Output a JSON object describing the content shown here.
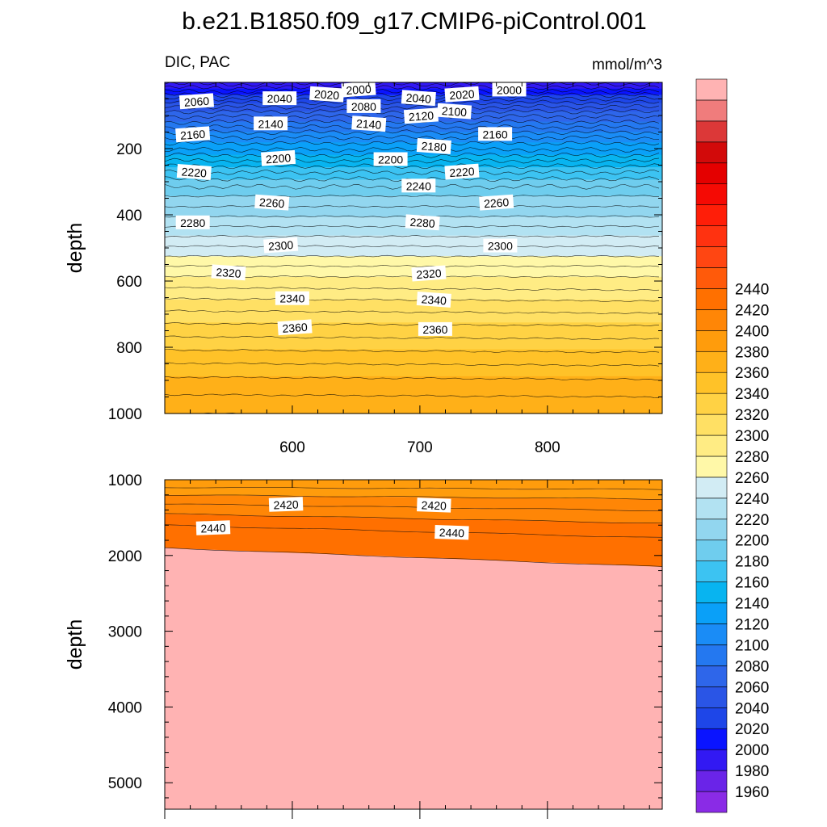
{
  "title": "b.e21.B1850.f09_g17.CMIP6-piControl.001",
  "panel_left_label": "DIC, PAC",
  "panel_right_label": "mmol/m^3",
  "colorbar": {
    "levels": [
      1960,
      1980,
      2000,
      2020,
      2040,
      2060,
      2080,
      2100,
      2120,
      2140,
      2160,
      2180,
      2200,
      2220,
      2240,
      2260,
      2280,
      2300,
      2320,
      2340,
      2360,
      2380,
      2400,
      2420,
      2440
    ],
    "colors": [
      "#8a2be6",
      "#6a24e8",
      "#3219f3",
      "#0a14ff",
      "#1e46e8",
      "#2a55e6",
      "#2e66ea",
      "#2478f0",
      "#1a8cf6",
      "#0aa0f8",
      "#08b4f0",
      "#3cc3f2",
      "#6fcdee",
      "#92d6ef",
      "#b2e2f2",
      "#d2ecf4",
      "#fff8a8",
      "#ffec84",
      "#ffe064",
      "#ffd244",
      "#ffc228",
      "#ffb018",
      "#ff9c0c",
      "#ff8606",
      "#ff7000",
      "#ff5a0a",
      "#ff4612",
      "#ff3210",
      "#ff1e08",
      "#f50a04",
      "#e40000",
      "#d20a0a",
      "#dc3838",
      "#f07c7c",
      "#ffb3b3"
    ]
  },
  "chart_data": [
    {
      "type": "contour",
      "panel": "upper",
      "xlim": [
        500,
        890
      ],
      "ylim": [
        1000,
        0
      ],
      "x_ticks": [
        "600",
        "700",
        "800"
      ],
      "y_ticks": [
        "200",
        "400",
        "600",
        "800",
        "1000"
      ],
      "ylabel": "depth",
      "profile_depths": [
        0,
        10,
        20,
        30,
        40,
        55,
        70,
        85,
        100,
        120,
        140,
        160,
        180,
        200,
        220,
        240,
        260,
        280,
        300,
        320,
        340,
        360,
        390,
        420,
        450,
        480,
        510,
        540,
        570,
        600,
        630,
        660,
        690,
        720,
        760,
        800,
        840,
        880,
        920,
        960,
        1000
      ],
      "profile_values": [
        1985,
        1995,
        2003,
        2012,
        2022,
        2035,
        2047,
        2058,
        2068,
        2080,
        2093,
        2106,
        2118,
        2128,
        2140,
        2152,
        2164,
        2174,
        2184,
        2192,
        2199,
        2205,
        2215,
        2225,
        2235,
        2245,
        2255,
        2265,
        2275,
        2284,
        2293,
        2302,
        2310,
        2318,
        2328,
        2338,
        2348,
        2358,
        2366,
        2373,
        2380
      ],
      "contour_labels": [
        {
          "text": "2000",
          "x": 652,
          "y": 22
        },
        {
          "text": "2000",
          "x": 770,
          "y": 23
        },
        {
          "text": "2020",
          "x": 627,
          "y": 37
        },
        {
          "text": "2020",
          "x": 733,
          "y": 37
        },
        {
          "text": "2040",
          "x": 590,
          "y": 49
        },
        {
          "text": "2040",
          "x": 699,
          "y": 48
        },
        {
          "text": "2060",
          "x": 525,
          "y": 58
        },
        {
          "text": "2080",
          "x": 656,
          "y": 73
        },
        {
          "text": "2100",
          "x": 727,
          "y": 88
        },
        {
          "text": "2120",
          "x": 701,
          "y": 102
        },
        {
          "text": "2140",
          "x": 583,
          "y": 125
        },
        {
          "text": "2140",
          "x": 660,
          "y": 126
        },
        {
          "text": "2160",
          "x": 522,
          "y": 158
        },
        {
          "text": "2160",
          "x": 759,
          "y": 157
        },
        {
          "text": "2180",
          "x": 711,
          "y": 194
        },
        {
          "text": "2200",
          "x": 589,
          "y": 230
        },
        {
          "text": "2200",
          "x": 677,
          "y": 233
        },
        {
          "text": "2220",
          "x": 523,
          "y": 272
        },
        {
          "text": "2220",
          "x": 733,
          "y": 271
        },
        {
          "text": "2240",
          "x": 699,
          "y": 313
        },
        {
          "text": "2260",
          "x": 584,
          "y": 364
        },
        {
          "text": "2260",
          "x": 760,
          "y": 364
        },
        {
          "text": "2280",
          "x": 522,
          "y": 424
        },
        {
          "text": "2280",
          "x": 702,
          "y": 424
        },
        {
          "text": "2300",
          "x": 591,
          "y": 493
        },
        {
          "text": "2300",
          "x": 763,
          "y": 494
        },
        {
          "text": "2320",
          "x": 550,
          "y": 575
        },
        {
          "text": "2320",
          "x": 707,
          "y": 578
        },
        {
          "text": "2340",
          "x": 600,
          "y": 653
        },
        {
          "text": "2340",
          "x": 711,
          "y": 657
        },
        {
          "text": "2360",
          "x": 602,
          "y": 741
        },
        {
          "text": "2360",
          "x": 712,
          "y": 746
        }
      ]
    },
    {
      "type": "contour",
      "panel": "lower",
      "xlim": [
        500,
        890
      ],
      "ylim": [
        5350,
        1000
      ],
      "y_ticks": [
        "1000",
        "2000",
        "3000",
        "4000",
        "5000"
      ],
      "ylabel": "depth",
      "profile_depths": [
        1000,
        1100,
        1200,
        1320,
        1450,
        1600,
        1900
      ],
      "profile_values": [
        2382,
        2392,
        2402,
        2412,
        2422,
        2432,
        2442
      ],
      "boundary_2440_left": 1900,
      "boundary_2440_right": 2150,
      "contour_labels": [
        {
          "text": "2420",
          "x": 595,
          "y": 1330
        },
        {
          "text": "2420",
          "x": 711,
          "y": 1340
        },
        {
          "text": "2440",
          "x": 538,
          "y": 1640
        },
        {
          "text": "2440",
          "x": 725,
          "y": 1700
        }
      ]
    }
  ]
}
